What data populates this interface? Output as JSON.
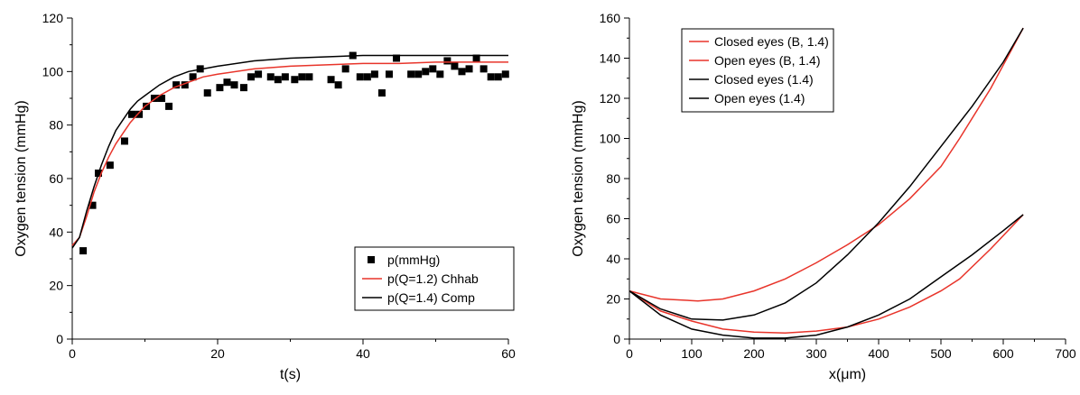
{
  "chart_data": [
    {
      "type": "line",
      "xlabel": "t(s)",
      "ylabel": "Oxygen tension (mmHg)",
      "xlim": [
        0,
        60
      ],
      "ylim": [
        0,
        120
      ],
      "xticks": [
        0,
        20,
        40,
        60
      ],
      "yticks": [
        0,
        20,
        40,
        60,
        80,
        100,
        120
      ],
      "grid": false,
      "legend_position": "bottom-right",
      "series": [
        {
          "name": "p(mmHg)",
          "style": "scatter",
          "marker": "square",
          "color": "#000000",
          "x": [
            1.5,
            2.8,
            3.6,
            5.2,
            7.2,
            8.2,
            9.2,
            10.2,
            11.3,
            12.3,
            13.3,
            14.3,
            15.5,
            16.6,
            17.6,
            18.6,
            20.3,
            21.3,
            22.3,
            23.6,
            24.6,
            25.6,
            27.3,
            28.3,
            29.3,
            30.6,
            31.6,
            32.6,
            35.6,
            36.6,
            37.6,
            38.6,
            39.6,
            40.6,
            41.6,
            42.6,
            43.6,
            44.6,
            46.6,
            47.6,
            48.6,
            49.6,
            50.6,
            51.6,
            52.6,
            53.6,
            54.6,
            55.6,
            56.6,
            57.6,
            58.6,
            59.6
          ],
          "y": [
            33,
            50,
            62,
            65,
            74,
            84,
            84,
            87,
            90,
            90,
            87,
            95,
            95,
            98,
            101,
            92,
            94,
            96,
            95,
            94,
            98,
            99,
            98,
            97,
            98,
            97,
            98,
            98,
            97,
            95,
            101,
            106,
            98,
            98,
            99,
            92,
            99,
            105,
            99,
            99,
            100,
            101,
            99,
            104,
            102,
            100,
            101,
            105,
            101,
            98,
            98,
            99
          ]
        },
        {
          "name": "p(Q=1.2) Chhab",
          "style": "line",
          "color": "#e8342a",
          "x": [
            0,
            1,
            2,
            3,
            4,
            5,
            6,
            7,
            8,
            9,
            10,
            12,
            14,
            16,
            18,
            20,
            25,
            30,
            35,
            40,
            45,
            50,
            55,
            60
          ],
          "y": [
            35,
            38,
            46,
            55,
            62,
            68,
            73,
            77,
            81,
            84,
            87,
            91,
            94,
            96,
            98,
            99,
            101,
            102,
            102.5,
            103,
            103,
            103.5,
            103.5,
            103.5
          ]
        },
        {
          "name": "p(Q=1.4) Comp",
          "style": "line",
          "color": "#000000",
          "x": [
            0,
            1,
            2,
            3,
            4,
            5,
            6,
            7,
            8,
            9,
            10,
            12,
            14,
            16,
            18,
            20,
            25,
            30,
            35,
            40,
            45,
            50,
            55,
            60
          ],
          "y": [
            34,
            38,
            48,
            57,
            65,
            72,
            78,
            82,
            86,
            89,
            91,
            95,
            98,
            100,
            101,
            102,
            104,
            105,
            105.5,
            106,
            106,
            106,
            106,
            106
          ]
        }
      ]
    },
    {
      "type": "line",
      "xlabel": "x(μm)",
      "ylabel": "Oxygen tension (mmHg)",
      "xlim": [
        0,
        700
      ],
      "ylim": [
        0,
        160
      ],
      "xticks": [
        0,
        100,
        200,
        300,
        400,
        500,
        600,
        700
      ],
      "yticks": [
        0,
        20,
        40,
        60,
        80,
        100,
        120,
        140,
        160
      ],
      "grid": false,
      "legend_position": "top-left",
      "series": [
        {
          "name": "Closed eyes (B, 1.4)",
          "color": "#e8342a",
          "x": [
            0,
            50,
            110,
            150,
            200,
            250,
            300,
            350,
            400,
            450,
            500,
            530,
            580,
            632
          ],
          "y": [
            24,
            20,
            19,
            20,
            24,
            30,
            38,
            47,
            57,
            70,
            86,
            100,
            125,
            155
          ]
        },
        {
          "name": "Open eyes (B, 1.4)",
          "color": "#e8342a",
          "x": [
            0,
            50,
            100,
            150,
            200,
            250,
            300,
            350,
            400,
            450,
            500,
            530,
            580,
            632
          ],
          "y": [
            24,
            14,
            9,
            5,
            3.5,
            3,
            4,
            6,
            10,
            16,
            24,
            30,
            45,
            62
          ]
        },
        {
          "name": "Closed eyes (1.4)",
          "color": "#000000",
          "x": [
            0,
            50,
            100,
            150,
            200,
            250,
            300,
            350,
            400,
            450,
            500,
            550,
            600,
            632
          ],
          "y": [
            24,
            15,
            10,
            9.5,
            12,
            18,
            28,
            42,
            58,
            76,
            96,
            116,
            138,
            155
          ]
        },
        {
          "name": "Open eyes (1.4)",
          "color": "#000000",
          "x": [
            0,
            50,
            100,
            150,
            200,
            250,
            300,
            350,
            400,
            450,
            500,
            550,
            600,
            632
          ],
          "y": [
            24,
            12,
            5,
            2,
            0.5,
            0.5,
            2,
            6,
            12,
            20,
            31,
            42,
            54,
            62
          ]
        }
      ]
    }
  ]
}
